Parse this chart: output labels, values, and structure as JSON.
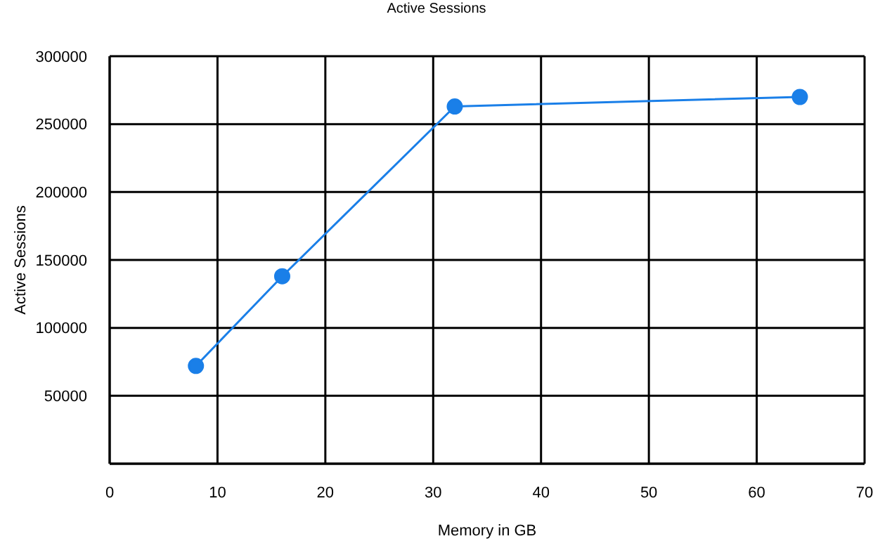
{
  "chart_data": {
    "type": "line",
    "title": "Active Sessions",
    "xlabel": "Memory in GB",
    "ylabel": "Active Sessions",
    "x": [
      8,
      16,
      32,
      64
    ],
    "series": [
      {
        "color": "#1a7fe8",
        "values": [
          72000,
          138000,
          263000,
          270000
        ]
      }
    ],
    "xlim": [
      0,
      70
    ],
    "xticks": [
      0,
      10,
      20,
      30,
      40,
      50,
      60,
      70
    ],
    "ylim": [
      0,
      300000
    ],
    "yticks": [
      {
        "value": 0,
        "label": null
      },
      50000,
      100000,
      150000,
      200000,
      250000,
      300000
    ],
    "grid": true,
    "marker": "circle",
    "line_style": "solid"
  }
}
